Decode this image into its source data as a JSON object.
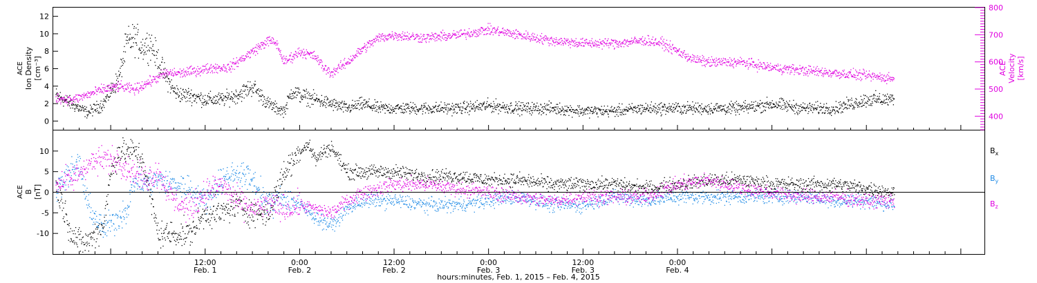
{
  "chart_data": [
    {
      "type": "scatter",
      "panel": "ion-density-velocity",
      "ylabel_lines": [
        "ACE",
        "Ion Density",
        "[cm⁻³]"
      ],
      "ylim": [
        -1,
        13
      ],
      "yticks": [
        0,
        2,
        4,
        6,
        8,
        10,
        12
      ],
      "y2label_lines": [
        "ACE",
        "Velocity",
        "[km/s]"
      ],
      "y2lim": [
        350,
        800
      ],
      "y2ticks": [
        400,
        500,
        600,
        700,
        800
      ],
      "x_unit": "hours since 2015-02-01 00:00",
      "series": [
        {
          "name": "",
          "axis": "left",
          "color": "#000000",
          "x": [
            -7,
            -5,
            -3,
            -1,
            1,
            2,
            3,
            4,
            5,
            6,
            7,
            8,
            9,
            10,
            12,
            14,
            16,
            18,
            20,
            21,
            22,
            23,
            24,
            26,
            28,
            30,
            32,
            34,
            36,
            40,
            44,
            48,
            52,
            56,
            60,
            64,
            68,
            72,
            76,
            80,
            84,
            88,
            92,
            94,
            96,
            98,
            99.5
          ],
          "y": [
            3,
            2,
            1,
            2,
            5,
            9,
            9.5,
            8.5,
            9,
            7,
            5,
            3.5,
            3,
            3,
            2.5,
            2.5,
            3,
            4,
            2,
            1.5,
            1.2,
            3.5,
            3,
            2.5,
            2,
            1.5,
            2,
            1.5,
            1.5,
            1.5,
            1.5,
            1.8,
            1.5,
            1.5,
            1.2,
            1.2,
            1.5,
            1.5,
            1.5,
            1.5,
            2,
            1.5,
            1.5,
            2,
            2.5,
            2.5,
            2.5
          ]
        },
        {
          "name": "",
          "axis": "right",
          "color": "#e000e0",
          "x": [
            -7,
            -5,
            -3,
            -1,
            1,
            3,
            5,
            7,
            9,
            11,
            13,
            15,
            17,
            19,
            20,
            21,
            22,
            24,
            26,
            27,
            28,
            30,
            32,
            34,
            36,
            40,
            44,
            48,
            52,
            54,
            56,
            60,
            64,
            68,
            70,
            72,
            74,
            76,
            80,
            84,
            88,
            92,
            96,
            99.5
          ],
          "y": [
            470,
            460,
            480,
            500,
            510,
            500,
            530,
            560,
            560,
            570,
            580,
            580,
            620,
            660,
            680,
            670,
            600,
            640,
            620,
            580,
            560,
            600,
            650,
            690,
            700,
            690,
            700,
            720,
            700,
            690,
            680,
            670,
            670,
            680,
            670,
            640,
            610,
            600,
            600,
            580,
            570,
            560,
            550,
            540
          ]
        }
      ]
    },
    {
      "type": "scatter",
      "panel": "magnetic-field",
      "ylabel_lines": [
        "ACE",
        "B",
        "[nT]"
      ],
      "ylim": [
        -15,
        15
      ],
      "yticks": [
        -10,
        -5,
        0,
        5,
        10
      ],
      "x_unit": "hours since 2015-02-01 00:00",
      "series": [
        {
          "name": "Bx",
          "color": "#000000",
          "x": [
            -7,
            -6,
            -5,
            -4,
            -3,
            -1,
            0,
            1,
            2,
            3,
            4,
            6,
            8,
            10,
            12,
            14,
            16,
            18,
            20,
            22,
            24,
            25,
            26,
            27,
            28,
            30,
            32,
            36,
            40,
            44,
            48,
            52,
            56,
            60,
            64,
            68,
            72,
            76,
            80,
            84,
            88,
            92,
            96,
            99.5
          ],
          "y": [
            2,
            -4,
            -10,
            -12,
            -12,
            -8,
            5,
            10,
            10,
            10,
            8,
            -10,
            -10,
            -10,
            -5,
            -5,
            -3,
            -5,
            -5,
            5,
            10,
            12,
            8,
            10,
            11,
            5,
            5,
            5,
            4,
            4,
            3,
            3,
            2,
            2,
            2,
            1,
            2,
            3,
            3,
            2,
            2,
            2,
            1,
            0
          ]
        },
        {
          "name": "By",
          "color": "#1e8ae6",
          "x": [
            -7,
            -6,
            -5,
            -4,
            -3,
            -1,
            1,
            2,
            3,
            4,
            6,
            8,
            10,
            12,
            14,
            16,
            18,
            20,
            22,
            24,
            26,
            28,
            30,
            32,
            36,
            40,
            44,
            48,
            52,
            56,
            60,
            64,
            68,
            72,
            76,
            80,
            84,
            88,
            92,
            96,
            99.5
          ],
          "y": [
            0,
            4,
            5,
            7,
            -3,
            -9,
            -6,
            -4,
            3,
            2,
            3,
            2,
            1,
            -2,
            3,
            5,
            3,
            -3,
            -1,
            -3,
            -6,
            -8,
            -4,
            -2,
            -2,
            -3,
            -3,
            -2,
            -1,
            -3,
            -3,
            -1,
            -2,
            -1,
            -1,
            -1,
            -1,
            -1,
            -2,
            -2,
            -3
          ]
        },
        {
          "name": "Bz",
          "color": "#e000e0",
          "x": [
            -7,
            -6,
            -5,
            -4,
            -3,
            -1,
            1,
            2,
            3,
            4,
            6,
            8,
            10,
            12,
            14,
            16,
            18,
            20,
            22,
            24,
            26,
            28,
            30,
            32,
            36,
            40,
            44,
            48,
            52,
            56,
            60,
            64,
            68,
            72,
            76,
            80,
            84,
            88,
            92,
            96,
            99.5
          ],
          "y": [
            2,
            3,
            3,
            5,
            7,
            8,
            8,
            6,
            5,
            3,
            5,
            -2,
            -4,
            0,
            2,
            -2,
            -4,
            -3,
            -4,
            -3,
            -4,
            -5,
            -2,
            0,
            2,
            2,
            1,
            0,
            -1,
            -2,
            -1,
            -1,
            -1,
            2,
            3,
            1,
            0,
            -1,
            -1,
            -2,
            -2
          ]
        }
      ]
    }
  ],
  "xaxis": {
    "xlim": [
      -7.3,
      111
    ],
    "ticks": [
      {
        "x": 12,
        "time": "12:00",
        "date": "Feb. 1"
      },
      {
        "x": 24,
        "time": "0:00",
        "date": "Feb. 2"
      },
      {
        "x": 36,
        "time": "12:00",
        "date": "Feb. 2"
      },
      {
        "x": 48,
        "time": "0:00",
        "date": "Feb. 3"
      },
      {
        "x": 60,
        "time": "12:00",
        "date": "Feb. 3"
      },
      {
        "x": 72,
        "time": "0:00",
        "date": "Feb. 4"
      }
    ],
    "label": "hours:minutes, Feb.  1, 2015 – Feb.  4, 2015"
  },
  "legend": {
    "placement": "right",
    "entries": [
      {
        "base": "B",
        "sub": "x",
        "color": "#000000"
      },
      {
        "base": "B",
        "sub": "y",
        "color": "#1e8ae6"
      },
      {
        "base": "B",
        "sub": "z",
        "color": "#e000e0"
      }
    ]
  }
}
